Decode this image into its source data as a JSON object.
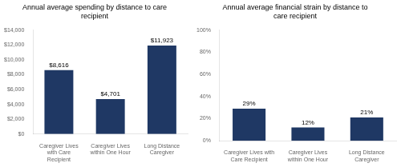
{
  "chart_data": [
    {
      "type": "bar",
      "title": "Annual average spending by distance to care\nrecipient",
      "categories": [
        "Caregiver Lives\nwith Care\nRecipient",
        "Caregiver Lives\nwithin One Hour",
        "Long Distance\nCaregiver"
      ],
      "values": [
        8616,
        4701,
        11923
      ],
      "value_labels": [
        "$8,616",
        "$4,701",
        "$11,923"
      ],
      "data_labels": true,
      "color": "#1F3864",
      "ylim": [
        0,
        14000
      ],
      "yticks": [
        {
          "value": 0,
          "label": "$0"
        },
        {
          "value": 2000,
          "label": "$2,000"
        },
        {
          "value": 4000,
          "label": "$4,000"
        },
        {
          "value": 6000,
          "label": "$6,000"
        },
        {
          "value": 8000,
          "label": "$8,000"
        },
        {
          "value": 10000,
          "label": "$10,000"
        },
        {
          "value": 12000,
          "label": "$12,000"
        },
        {
          "value": 14000,
          "label": "$14,000"
        }
      ],
      "grid": false
    },
    {
      "type": "bar",
      "title": "Annual average financial strain by distance to\ncare recipient",
      "categories": [
        "Caregiver Lives with\nCare Recipient",
        "Caregiver Lives\nwithin One Hour",
        "Long Distance\nCaregiver"
      ],
      "values": [
        0.29,
        0.12,
        0.21
      ],
      "value_labels": [
        "29%",
        "12%",
        "21%"
      ],
      "data_labels": true,
      "color": "#1F3864",
      "ylim": [
        0,
        1.0
      ],
      "yticks": [
        {
          "value": 0,
          "label": "0%"
        },
        {
          "value": 0.2,
          "label": "20%"
        },
        {
          "value": 0.4,
          "label": "40%"
        },
        {
          "value": 0.6,
          "label": "60%"
        },
        {
          "value": 0.8,
          "label": "80%"
        },
        {
          "value": 1.0,
          "label": "100%"
        }
      ],
      "grid": false
    }
  ]
}
